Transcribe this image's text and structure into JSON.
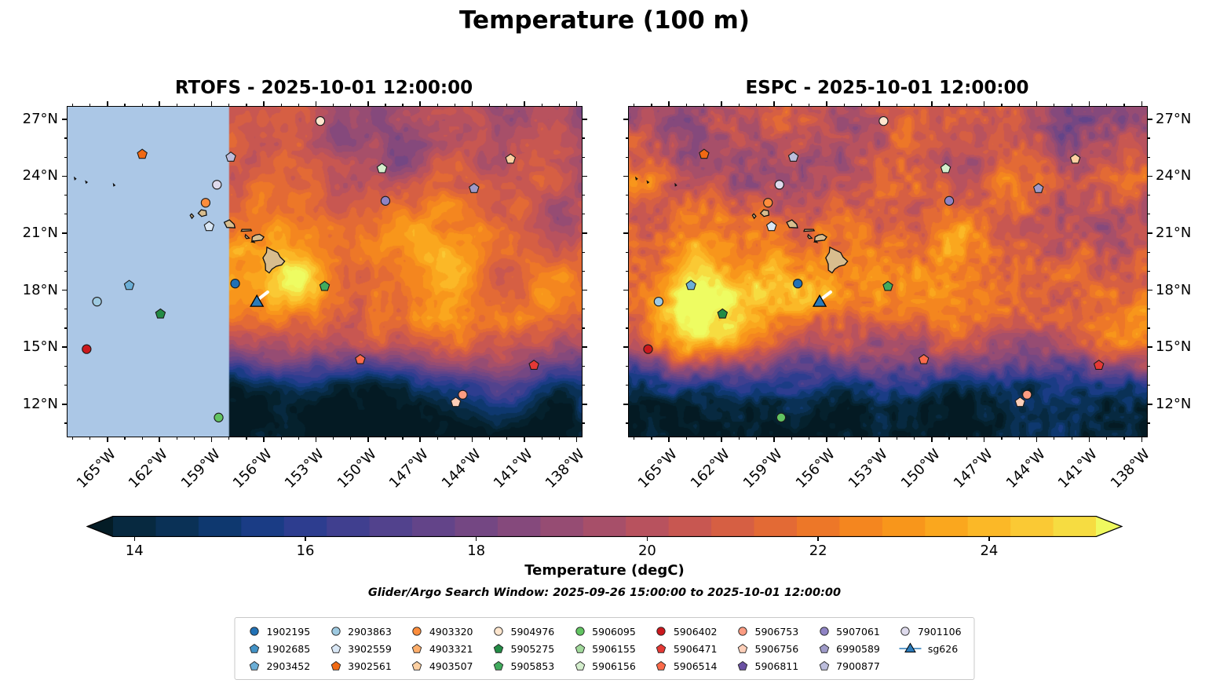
{
  "figure": {
    "title": "Temperature (100 m)",
    "colorbar_label": "Temperature (degC)",
    "search_window_note": "Glider/Argo Search Window: 2025-09-26 15:00:00 to 2025-10-01 12:00:00"
  },
  "chart_data": {
    "type": "heatmap",
    "variable": "Temperature",
    "depth": "100 m",
    "units": "degC",
    "extent": {
      "lon_min": -167.3,
      "lon_max": -137.7,
      "lat_min": 10.3,
      "lat_max": 27.65
    },
    "xticks": [
      -165,
      -162,
      -159,
      -156,
      -153,
      -150,
      -147,
      -144,
      -141,
      -138
    ],
    "xtick_labels": [
      "165°W",
      "162°W",
      "159°W",
      "156°W",
      "153°W",
      "150°W",
      "147°W",
      "144°W",
      "141°W",
      "138°W"
    ],
    "yticks": [
      27,
      24,
      21,
      18,
      15,
      12
    ],
    "ytick_labels": [
      "27°N",
      "24°N",
      "21°N",
      "18°N",
      "15°N",
      "12°N"
    ],
    "colorbar": {
      "vmin": 13.75,
      "vmax": 25.25,
      "step": 0.5,
      "ticks": [
        14,
        16,
        18,
        20,
        22,
        24
      ],
      "tick_labels": [
        "14",
        "16",
        "18",
        "20",
        "22",
        "24"
      ],
      "extend": "both"
    },
    "colormap": [
      [
        13.0,
        "#041a23"
      ],
      [
        13.5,
        "#05212d"
      ],
      [
        14.0,
        "#072940"
      ],
      [
        14.5,
        "#0a3156"
      ],
      [
        15.0,
        "#0e386f"
      ],
      [
        15.5,
        "#1a3c85"
      ],
      [
        16.0,
        "#2d3d8f"
      ],
      [
        16.5,
        "#403f8f"
      ],
      [
        17.0,
        "#52428d"
      ],
      [
        17.5,
        "#634489"
      ],
      [
        18.0,
        "#744783"
      ],
      [
        18.5,
        "#85497c"
      ],
      [
        19.0,
        "#964c73"
      ],
      [
        19.5,
        "#a74f69"
      ],
      [
        20.0,
        "#b8525e"
      ],
      [
        20.5,
        "#c85751"
      ],
      [
        21.0,
        "#d65f43"
      ],
      [
        21.5,
        "#e36a35"
      ],
      [
        22.0,
        "#ed7728"
      ],
      [
        22.5,
        "#f4861f"
      ],
      [
        23.0,
        "#f8961b"
      ],
      [
        23.5,
        "#faa71e"
      ],
      [
        24.0,
        "#fbb827"
      ],
      [
        24.5,
        "#fac934"
      ],
      [
        25.0,
        "#f6dc41"
      ],
      [
        25.5,
        "#f0f358"
      ],
      [
        26.0,
        "#eefc62"
      ]
    ],
    "lat_profile": [
      [
        10.3,
        13.0
      ],
      [
        11,
        13.4
      ],
      [
        12,
        14.3
      ],
      [
        13,
        15.8
      ],
      [
        14,
        18.3
      ],
      [
        15,
        20.5
      ],
      [
        16,
        21.7
      ],
      [
        17,
        22.4
      ],
      [
        18,
        22.7
      ],
      [
        19,
        22.6
      ],
      [
        20,
        22.3
      ],
      [
        21,
        21.9
      ],
      [
        22,
        21.4
      ],
      [
        23,
        20.9
      ],
      [
        24,
        20.5
      ],
      [
        25,
        20.1
      ],
      [
        26,
        19.9
      ],
      [
        27.65,
        19.6
      ]
    ],
    "panels": [
      {
        "id": "rtofs",
        "model": "RTOFS",
        "valid_time": "2025-10-01 12:00:00",
        "title": "RTOFS - 2025-10-01 12:00:00",
        "ylabel_side": "left",
        "seed": 3,
        "grain": 0.5,
        "masked_region": {
          "west_of_lon": -158.0,
          "color": "#abc7e6"
        },
        "anomalies": [
          {
            "lon": -153.9,
            "lat": 18.8,
            "slon": 1.7,
            "slat": 1.0,
            "amp": 2.3
          },
          {
            "lon": -157.2,
            "lat": 20.2,
            "slon": 0.8,
            "slat": 0.55,
            "amp": 1.4
          },
          {
            "lon": -138.7,
            "lat": 21.5,
            "slon": 1.5,
            "slat": 3.0,
            "amp": -1.6
          },
          {
            "lon": -146.5,
            "lat": 25.2,
            "slon": 2.6,
            "slat": 1.4,
            "amp": -0.7
          },
          {
            "lon": -149.5,
            "lat": 13.0,
            "slon": 2.0,
            "slat": 1.2,
            "amp": -1.0
          }
        ]
      },
      {
        "id": "espc",
        "model": "ESPC",
        "valid_time": "2025-10-01 12:00:00",
        "title": "ESPC - 2025-10-01 12:00:00",
        "ylabel_side": "right",
        "seed": 11,
        "grain": 0.9,
        "anomalies": [
          {
            "lon": -162.8,
            "lat": 16.8,
            "slon": 2.7,
            "slat": 1.9,
            "amp": 3.1
          },
          {
            "lon": -165.8,
            "lat": 15.0,
            "slon": 2.0,
            "slat": 1.2,
            "amp": 1.5
          },
          {
            "lon": -160.2,
            "lat": 18.5,
            "slon": 1.3,
            "slat": 1.0,
            "amp": 1.3
          },
          {
            "lon": -139.6,
            "lat": 20.5,
            "slon": 1.6,
            "slat": 2.8,
            "amp": -1.3
          },
          {
            "lon": -143.0,
            "lat": 13.0,
            "slon": 2.2,
            "slat": 1.1,
            "amp": -0.8
          }
        ]
      }
    ],
    "islands": [
      {
        "name": "hawaii",
        "points": [
          [
            -155.06,
            19.74
          ],
          [
            -154.8,
            19.52
          ],
          [
            -154.97,
            19.33
          ],
          [
            -155.28,
            19.26
          ],
          [
            -155.53,
            19.11
          ],
          [
            -155.69,
            18.91
          ],
          [
            -155.9,
            19.05
          ],
          [
            -155.91,
            19.38
          ],
          [
            -156.05,
            19.7
          ],
          [
            -155.85,
            19.98
          ],
          [
            -155.82,
            20.26
          ],
          [
            -155.55,
            20.13
          ],
          [
            -155.2,
            19.98
          ]
        ]
      },
      {
        "name": "maui",
        "points": [
          [
            -156.48,
            20.9
          ],
          [
            -156.24,
            20.94
          ],
          [
            -156.0,
            20.8
          ],
          [
            -156.12,
            20.63
          ],
          [
            -156.45,
            20.6
          ],
          [
            -156.69,
            20.57
          ],
          [
            -156.66,
            20.8
          ]
        ]
      },
      {
        "name": "kahoolawe",
        "points": [
          [
            -156.7,
            20.54
          ],
          [
            -156.54,
            20.51
          ],
          [
            -156.61,
            20.6
          ]
        ]
      },
      {
        "name": "lanai",
        "points": [
          [
            -157.05,
            20.92
          ],
          [
            -156.84,
            20.74
          ],
          [
            -157.0,
            20.72
          ],
          [
            -157.08,
            20.83
          ]
        ]
      },
      {
        "name": "molokai",
        "points": [
          [
            -157.3,
            21.1
          ],
          [
            -156.71,
            21.13
          ],
          [
            -156.75,
            21.2
          ],
          [
            -157.26,
            21.2
          ]
        ]
      },
      {
        "name": "oahu",
        "points": [
          [
            -158.28,
            21.57
          ],
          [
            -158.13,
            21.3
          ],
          [
            -157.66,
            21.28
          ],
          [
            -157.71,
            21.47
          ],
          [
            -157.98,
            21.7
          ]
        ]
      },
      {
        "name": "kauai",
        "points": [
          [
            -159.78,
            22.05
          ],
          [
            -159.58,
            21.88
          ],
          [
            -159.3,
            21.95
          ],
          [
            -159.33,
            22.18
          ],
          [
            -159.6,
            22.23
          ]
        ]
      },
      {
        "name": "niihau",
        "points": [
          [
            -160.24,
            21.94
          ],
          [
            -160.14,
            21.78
          ],
          [
            -160.04,
            21.89
          ],
          [
            -160.16,
            22.02
          ]
        ]
      },
      {
        "name": "islet-1",
        "points": [
          [
            -166.9,
            23.92
          ],
          [
            -166.82,
            23.86
          ],
          [
            -166.88,
            23.82
          ]
        ]
      },
      {
        "name": "islet-2",
        "points": [
          [
            -166.25,
            23.73
          ],
          [
            -166.17,
            23.68
          ],
          [
            -166.23,
            23.64
          ]
        ]
      },
      {
        "name": "islet-3",
        "points": [
          [
            -164.65,
            23.58
          ],
          [
            -164.58,
            23.52
          ],
          [
            -164.64,
            23.49
          ]
        ]
      }
    ],
    "floats": [
      {
        "id": "1902195",
        "marker": "circle",
        "color": "#2171b5",
        "lon": -157.65,
        "lat": 18.35
      },
      {
        "id": "1902685",
        "marker": "pentagon",
        "color": "#4292c6"
      },
      {
        "id": "2903452",
        "marker": "pentagon",
        "color": "#6baed6",
        "lon": -163.75,
        "lat": 18.25
      },
      {
        "id": "2903863",
        "marker": "circle",
        "color": "#9ecae1",
        "lon": -165.6,
        "lat": 17.4
      },
      {
        "id": "3902559",
        "marker": "pentagon",
        "color": "#d9e7f5",
        "lon": -159.15,
        "lat": 21.35
      },
      {
        "id": "3902561",
        "marker": "pentagon",
        "color": "#f16913",
        "lon": -163.0,
        "lat": 25.15
      },
      {
        "id": "4903320",
        "marker": "circle",
        "color": "#fd8d3c",
        "lon": -159.35,
        "lat": 22.6
      },
      {
        "id": "4903321",
        "marker": "pentagon",
        "color": "#fdae6b"
      },
      {
        "id": "4903507",
        "marker": "pentagon",
        "color": "#fdd0a2",
        "lon": -141.8,
        "lat": 24.9
      },
      {
        "id": "5904976",
        "marker": "circle",
        "color": "#fee6ce",
        "lon": -152.75,
        "lat": 26.9
      },
      {
        "id": "5905275",
        "marker": "pentagon",
        "color": "#238b45",
        "lon": -161.95,
        "lat": 16.75
      },
      {
        "id": "5905853",
        "marker": "pentagon",
        "color": "#41ab5d",
        "lon": -152.5,
        "lat": 18.2
      },
      {
        "id": "5906095",
        "marker": "circle",
        "color": "#62c462",
        "lon": -158.6,
        "lat": 11.3
      },
      {
        "id": "5906155",
        "marker": "pentagon",
        "color": "#a1d99b"
      },
      {
        "id": "5906156",
        "marker": "pentagon",
        "color": "#d4eecd",
        "lon": -149.2,
        "lat": 24.4
      },
      {
        "id": "5906402",
        "marker": "circle",
        "color": "#cb181d",
        "lon": -166.2,
        "lat": 14.9
      },
      {
        "id": "5906471",
        "marker": "pentagon",
        "color": "#e53935",
        "lon": -140.45,
        "lat": 14.05
      },
      {
        "id": "5906514",
        "marker": "pentagon",
        "color": "#fb6a4a",
        "lon": -150.45,
        "lat": 14.35
      },
      {
        "id": "5906753",
        "marker": "circle",
        "color": "#fc9c82",
        "lon": -144.55,
        "lat": 12.5
      },
      {
        "id": "5906756",
        "marker": "pentagon",
        "color": "#fdcfb9",
        "lon": -144.95,
        "lat": 12.1
      },
      {
        "id": "5906811",
        "marker": "pentagon",
        "color": "#6a51a3"
      },
      {
        "id": "5907061",
        "marker": "circle",
        "color": "#8f83c4",
        "lon": -149.0,
        "lat": 22.7
      },
      {
        "id": "6990589",
        "marker": "pentagon",
        "color": "#9e9ac8",
        "lon": -143.9,
        "lat": 23.35
      },
      {
        "id": "7900877",
        "marker": "pentagon",
        "color": "#bcbddc",
        "lon": -157.9,
        "lat": 25.0
      },
      {
        "id": "7901106",
        "marker": "circle",
        "color": "#dedaec",
        "lon": -158.7,
        "lat": 23.55
      },
      {
        "id": "sg626",
        "marker": "glider",
        "color": "#2b7bba",
        "lon": -156.4,
        "lat": 17.4
      }
    ],
    "glider_track": [
      [
        -156.28,
        17.55
      ],
      [
        -155.78,
        17.9
      ]
    ]
  },
  "legend": {
    "columns": 9,
    "rows": 3
  }
}
